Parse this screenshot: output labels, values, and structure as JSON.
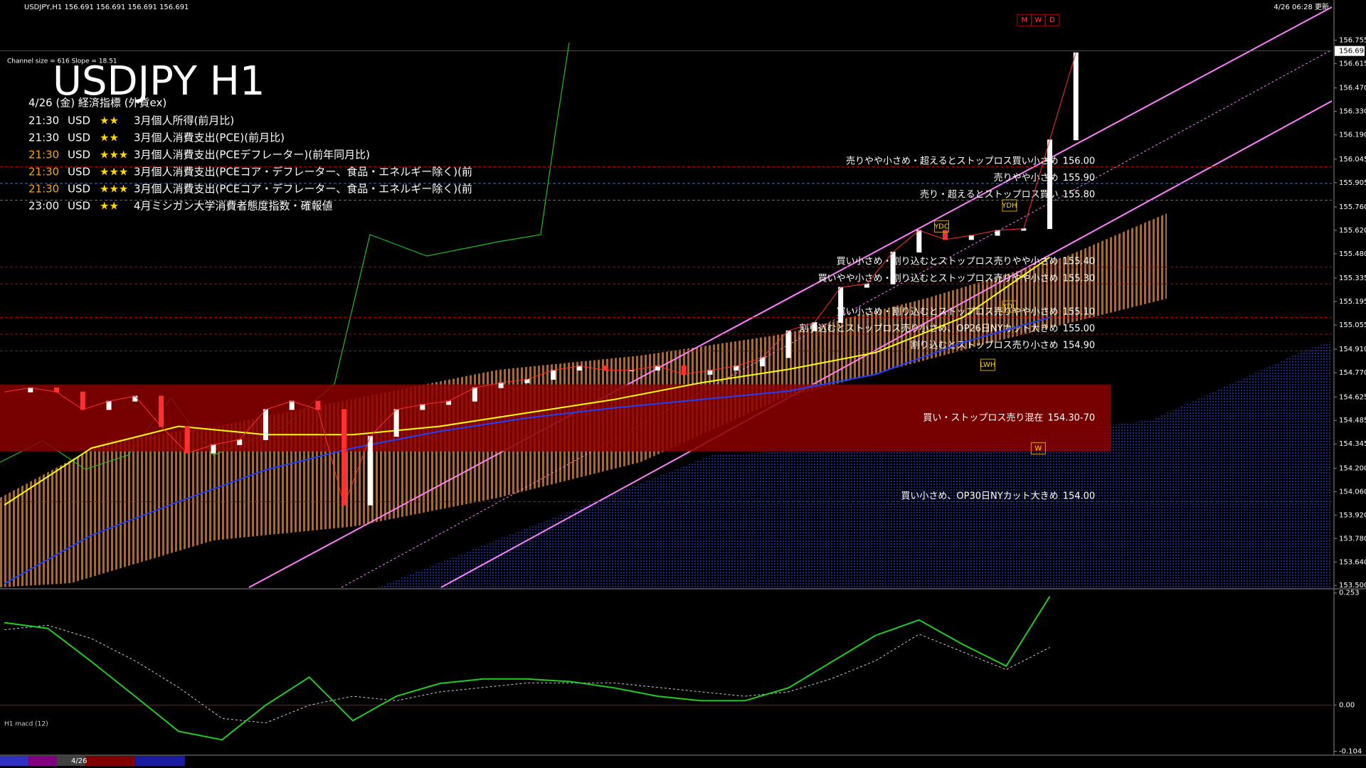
{
  "header": {
    "symbol_info": "USDJPY,H1  156.691 156.691 156.691 156.691",
    "updated": "4/26 06:28 更新",
    "channel_info": "Channel size = 616 Slope = 18.51",
    "title": "USDJPY H1"
  },
  "events": {
    "heading": "4/26 (金) 経済指標 (外貨ex)",
    "rows": [
      {
        "time": "21:30",
        "currency": "USD",
        "stars": "★★",
        "name": "3月個人所得(前月比)",
        "color": "#ffffff"
      },
      {
        "time": "21:30",
        "currency": "USD",
        "stars": "★★",
        "name": "3月個人消費支出(PCE)(前月比)",
        "color": "#ffffff"
      },
      {
        "time": "21:30",
        "currency": "USD",
        "stars": "★★★",
        "name": "3月個人消費支出(PCEデフレーター)(前年同月比)",
        "color": "#ffa500"
      },
      {
        "time": "21:30",
        "currency": "USD",
        "stars": "★★★",
        "name": "3月個人消費支出(PCEコア・デフレーター、食品・エネルギー除く)(前",
        "color": "#ffa500"
      },
      {
        "time": "21:30",
        "currency": "USD",
        "stars": "★★★",
        "name": "3月個人消費支出(PCEコア・デフレーター、食品・エネルギー除く)(前",
        "color": "#ffa500"
      },
      {
        "time": "23:00",
        "currency": "USD",
        "stars": "★★",
        "name": "4月ミシガン大学消費者態度指数・確報値",
        "color": "#ffffff"
      }
    ]
  },
  "price_pane": {
    "ylim": [
      153.484,
      156.974
    ],
    "yticks": [
      {
        "value": 156.755,
        "label": "156.755"
      },
      156.615,
      {
        "value": 156.47,
        "label": "156.470"
      },
      {
        "value": 156.33,
        "label": "156.330"
      },
      {
        "value": 156.19,
        "label": "156.190"
      },
      156.045,
      155.905,
      {
        "value": 155.76,
        "label": "155.760"
      },
      {
        "value": 155.62,
        "label": "155.620"
      },
      {
        "value": 155.48,
        "label": "155.480"
      },
      155.335,
      155.195,
      155.055,
      {
        "value": 154.91,
        "label": "154.910"
      },
      {
        "value": 154.77,
        "label": "154.770"
      },
      154.625,
      154.485,
      154.345,
      {
        "value": 154.2,
        "label": "154.200"
      },
      {
        "value": 154.06,
        "label": "154.060"
      },
      {
        "value": 153.92,
        "label": "153.920"
      },
      {
        "value": 153.78,
        "label": "153.780"
      },
      {
        "value": 153.64,
        "label": "153.640"
      },
      {
        "value": 153.5,
        "label": "153.500"
      }
    ],
    "current_price": 156.691,
    "price": {
      "color": "#ff3030",
      "values": [
        154.655,
        154.68,
        154.655,
        154.55,
        154.6,
        154.63,
        154.45,
        154.29,
        154.34,
        154.37,
        154.55,
        154.6,
        154.55,
        153.98,
        154.39,
        154.55,
        154.58,
        154.6,
        154.68,
        154.71,
        154.73,
        154.785,
        154.81,
        154.785,
        154.785,
        154.81,
        154.76,
        154.785,
        154.81,
        154.86,
        155.02,
        155.07,
        155.28,
        155.3,
        155.49,
        155.62,
        155.565,
        155.59,
        155.62,
        155.63,
        156.16,
        156.68
      ]
    },
    "ma_yellow": {
      "color": "#ffff00",
      "values": [
        153.98,
        154.32,
        154.45,
        154.4,
        154.4,
        154.45,
        154.53,
        154.61,
        154.71,
        154.79,
        154.89,
        155.1,
        155.46
      ]
    },
    "ma_blue": {
      "color": "#2040ff",
      "values": [
        153.51,
        153.8,
        154.0,
        154.19,
        154.32,
        154.42,
        154.5,
        154.56,
        154.61,
        154.66,
        154.76,
        154.95,
        155.1
      ]
    },
    "levels": [
      {
        "text": "売りやや小さめ・超えるとストップロス買い小さめ",
        "price": {
          "value": 156,
          "label": "156.00"
        },
        "color": "#c00000"
      },
      {
        "text": "売りやや小さめ",
        "price": {
          "value": 155.9,
          "label": "155.90"
        },
        "color": "#3a6fd8"
      },
      {
        "text": "売り・超えるとストップロス買い",
        "price": {
          "value": 155.8,
          "label": "155.80"
        },
        "color": "#3a6fd8"
      },
      {
        "text": "買い小さめ・割り込むとストップロス売りやや小さめ",
        "price": {
          "value": 155.4,
          "label": "155.40"
        },
        "color": "#c00000"
      },
      {
        "text": "買いやや小さめ・割り込むとストップロス売りやや小さめ",
        "price": {
          "value": 155.3,
          "label": "155.30"
        },
        "color": "#c00000"
      },
      {
        "text": "買い小さめ・割り込むとストップロス売りやや小さめ",
        "price": {
          "value": 155.1,
          "label": "155.10"
        },
        "color": "#c00000"
      },
      {
        "text": "割り込むとストップロス売り小さめ、OP26日NYカット大きめ",
        "price": {
          "value": 155,
          "label": "155.00"
        },
        "color": "#c00000"
      },
      {
        "text": "割り込むとストップロス売り小さめ",
        "price": {
          "value": 154.9,
          "label": "154.90"
        },
        "color": "#c00000"
      },
      {
        "text": "買い小さめ、OP30日NYカット大きめ",
        "price": {
          "value": 154,
          "label": "154.00"
        },
        "color": "#c00000"
      }
    ],
    "zone": {
      "text": "買い・ストップロス売り混在",
      "label": "154.30-70",
      "range": [
        154.3,
        154.7
      ],
      "color": "#8b0000"
    },
    "markers": [
      "M",
      "W",
      "D",
      "YDH",
      "YDC",
      "YDL",
      "LWH",
      "W"
    ]
  },
  "macd_pane": {
    "label": "H1  macd (12)",
    "ylim": [
      -0.108,
      0.259
    ],
    "yticks": [
      0.253,
      {
        "value": 0,
        "label": "0.00"
      },
      -0.104
    ],
    "macd": {
      "color": "#22cc22",
      "values": [
        0.186,
        0.173,
        0.098,
        0.02,
        -0.059,
        -0.078,
        0,
        0.063,
        -0.035,
        0.02,
        0.049,
        0.059,
        0.059,
        0.053,
        0.039,
        0.02,
        0.01,
        0.01,
        0.039,
        0.098,
        0.157,
        0.192,
        0.137,
        0.088,
        0.245
      ]
    },
    "signal": {
      "color": "#cccccc",
      "values": [
        0.17,
        0.18,
        0.15,
        0.1,
        0.04,
        -0.03,
        -0.04,
        0,
        0.02,
        0.01,
        0.03,
        0.04,
        0.05,
        0.05,
        0.05,
        0.04,
        0.03,
        0.02,
        0.03,
        0.06,
        0.1,
        0.16,
        0.12,
        0.08,
        0.13
      ]
    }
  },
  "status_bar": {
    "date": "4/26"
  }
}
